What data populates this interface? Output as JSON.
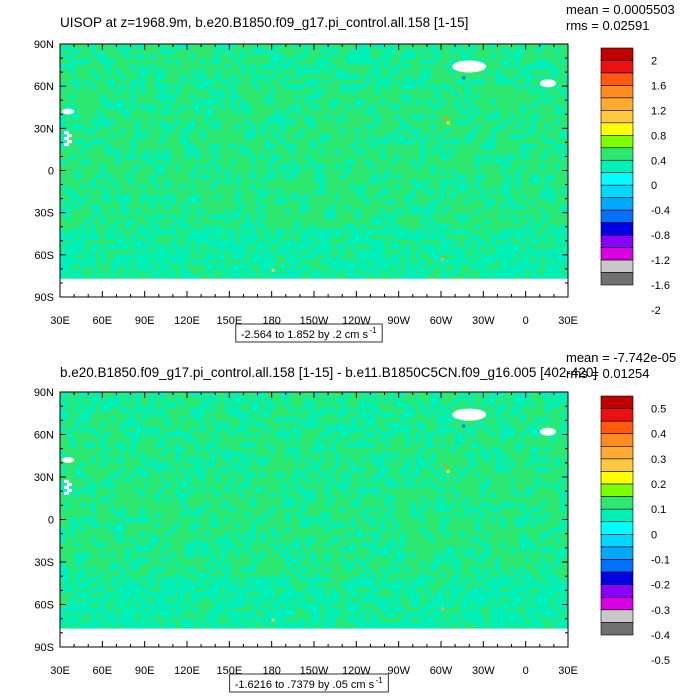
{
  "panels": [
    {
      "title": "UISOP at z=1968.9m, b.e20.B1850.f09_g17.pi_control.all.158 [1-15]",
      "stats": {
        "mean": "mean = 0.0005503",
        "rms": "rms = 0.02591"
      },
      "range_label": "-2.564 to 1.852 by .2 cm s",
      "range_exp": "-1",
      "colorbar": {
        "labels": [
          "2",
          "1.6",
          "1.2",
          "0.8",
          "0.4",
          "0",
          "-0.4",
          "-0.8",
          "-1.2",
          "-1.6",
          "-2"
        ],
        "colors": [
          "#c00000",
          "#ee1010",
          "#ff5a10",
          "#ff8c20",
          "#ffaa30",
          "#ffc840",
          "#ffff00",
          "#7cff00",
          "#2ce870",
          "#00f0b8",
          "#00ffff",
          "#00d8ff",
          "#00a8ff",
          "#0070ff",
          "#0000e6",
          "#8a00ff",
          "#d800e0",
          "#c8c8c8",
          "#707070"
        ]
      },
      "field": {
        "base": "#2ce870",
        "secondary": "#00f0b8",
        "coverage": 0.28
      }
    },
    {
      "title": "b.e20.B1850.f09_g17.pi_control.all.158 [1-15] - b.e11.B1850C5CN.f09_g16.005 [402-420]",
      "stats": {
        "mean": "mean = -7.742e-05",
        "rms": "rms = 0.01254"
      },
      "range_label": "-1.6216 to .7379 by .05 cm s",
      "range_exp": "-1",
      "colorbar": {
        "labels": [
          "0.5",
          "0.4",
          "0.3",
          "0.2",
          "0.1",
          "0",
          "-0.1",
          "-0.2",
          "-0.3",
          "-0.4",
          "-0.5"
        ],
        "colors": [
          "#c00000",
          "#ee1010",
          "#ff5a10",
          "#ff8c20",
          "#ffaa30",
          "#ffc840",
          "#ffff00",
          "#7cff00",
          "#2ce870",
          "#00f0b8",
          "#00ffff",
          "#00d8ff",
          "#00a8ff",
          "#0070ff",
          "#0000e6",
          "#8a00ff",
          "#d800e0",
          "#c8c8c8",
          "#707070"
        ]
      },
      "field": {
        "base": "#2ce870",
        "secondary": "#00f0b8",
        "coverage": 0.3
      }
    }
  ],
  "axes": {
    "y_ticks": [
      "90N",
      "60N",
      "30N",
      "0",
      "30S",
      "60S",
      "90S"
    ],
    "x_ticks": [
      "30E",
      "60E",
      "90E",
      "120E",
      "150E",
      "180",
      "150W",
      "120W",
      "90W",
      "60W",
      "30W",
      "0",
      "30E"
    ]
  }
}
